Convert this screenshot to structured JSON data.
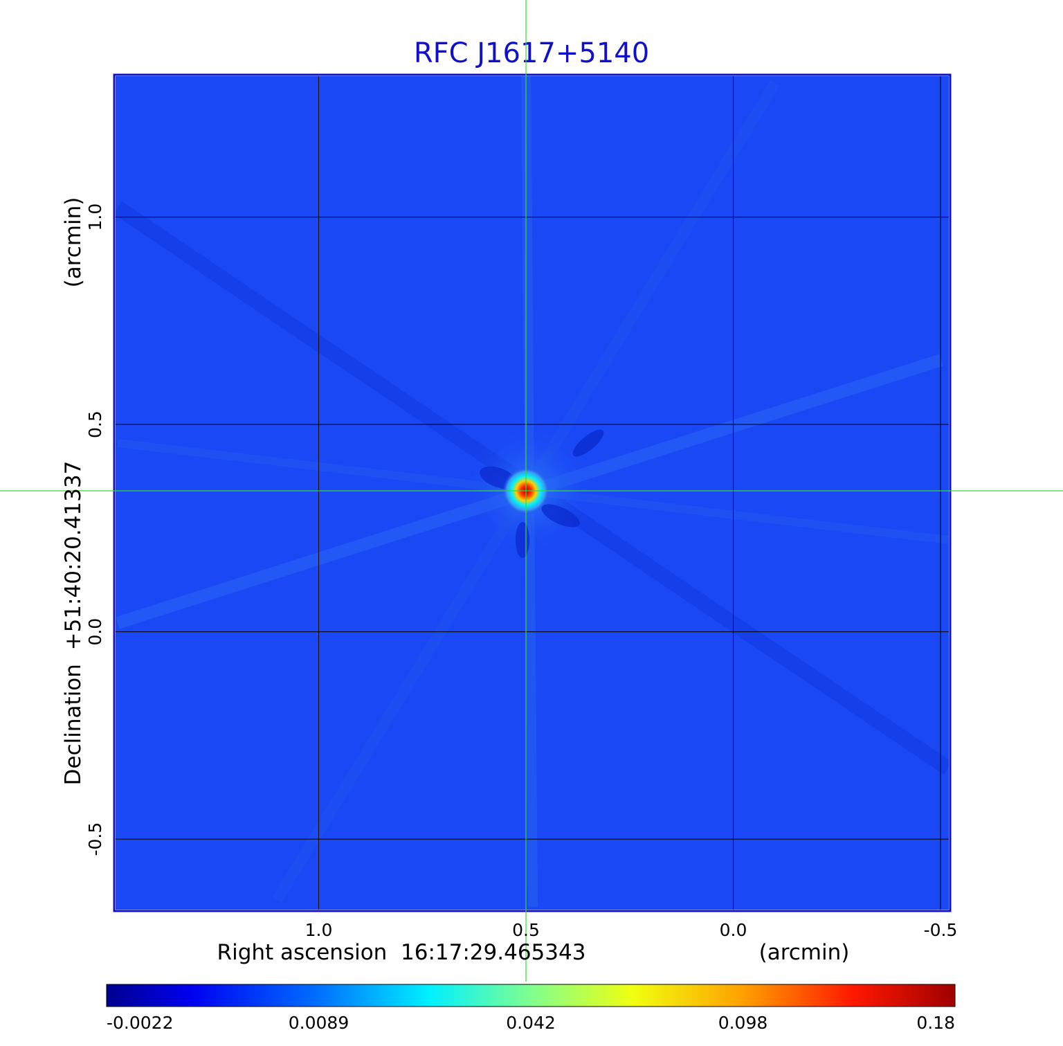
{
  "chart_data": {
    "type": "heatmap",
    "title": "RFC J1617+5140",
    "xlabel": "Right ascension  16:17:29.465343",
    "xlabel_unit": "(arcmin)",
    "ylabel": "Declination  +51:40:20.41337",
    "ylabel_unit": "(arcmin)",
    "x_ticks": [
      1.0,
      0.5,
      0.0,
      -0.5
    ],
    "x_tick_labels": [
      "1.0",
      "0.5",
      "0.0",
      "-0.5"
    ],
    "y_ticks": [
      1.0,
      0.5,
      0.0,
      -0.5
    ],
    "y_tick_labels": [
      "1.0",
      "0.5",
      "0.0",
      "-0.5"
    ],
    "xlim": [
      1.49,
      -0.52
    ],
    "ylim": [
      -0.67,
      1.34
    ],
    "grid": true,
    "crosshair": {
      "x": 0.5,
      "y": 0.34
    },
    "peak": {
      "x": 0.5,
      "y": 0.34,
      "value": 0.18
    },
    "colormap": "jet",
    "colors": {
      "title": "#1010cc",
      "background_field": "#1a48f5",
      "crosshair": "#33dd33",
      "frame": "#1010cc"
    },
    "colorbar": {
      "tick_labels": [
        "-0.0022",
        "0.0089",
        "0.042",
        "0.098",
        "0.18"
      ],
      "range": [
        -0.0022,
        0.18
      ],
      "orientation": "horizontal",
      "placement": "bottom"
    }
  }
}
